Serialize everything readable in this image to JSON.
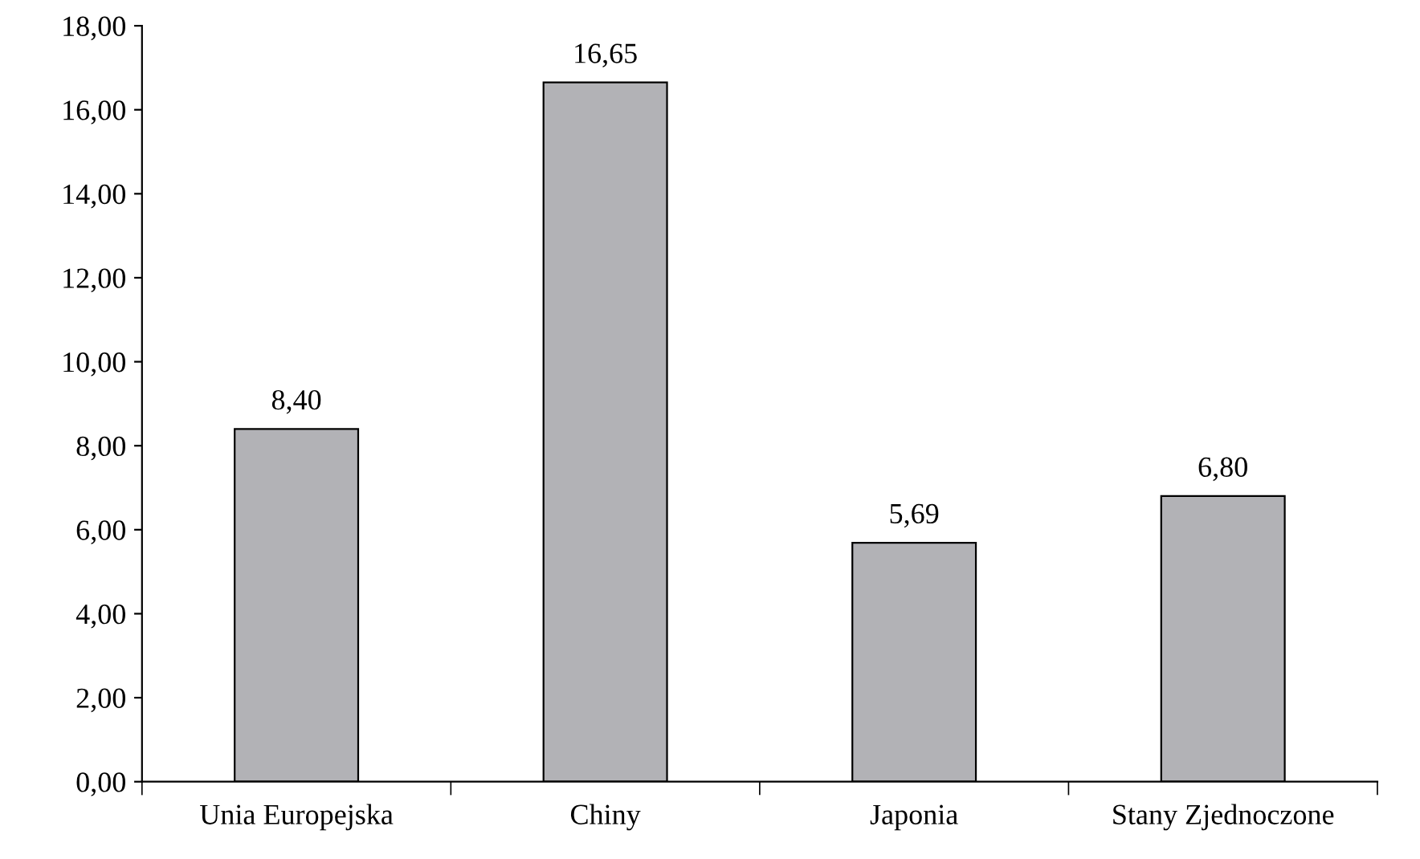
{
  "chart_data": {
    "type": "bar",
    "categories": [
      "Unia Europejska",
      "Chiny",
      "Japonia",
      "Stany Zjednoczone"
    ],
    "values": [
      8.4,
      16.65,
      5.69,
      6.8
    ],
    "value_labels": [
      "8,40",
      "16,65",
      "5,69",
      "6,80"
    ],
    "color": "#b2b2b6",
    "ylim": [
      0,
      18
    ],
    "yticks": [
      {
        "value": 0,
        "label": "0,00"
      },
      {
        "value": 2,
        "label": "2,00"
      },
      {
        "value": 4,
        "label": "4,00"
      },
      {
        "value": 6,
        "label": "6,00"
      },
      {
        "value": 8,
        "label": "8,00"
      },
      {
        "value": 10,
        "label": "10,00"
      },
      {
        "value": 12,
        "label": "12,00"
      },
      {
        "value": 14,
        "label": "14,00"
      },
      {
        "value": 16,
        "label": "16,00"
      },
      {
        "value": 18,
        "label": "18,00"
      }
    ],
    "grid": false,
    "legend": false
  }
}
